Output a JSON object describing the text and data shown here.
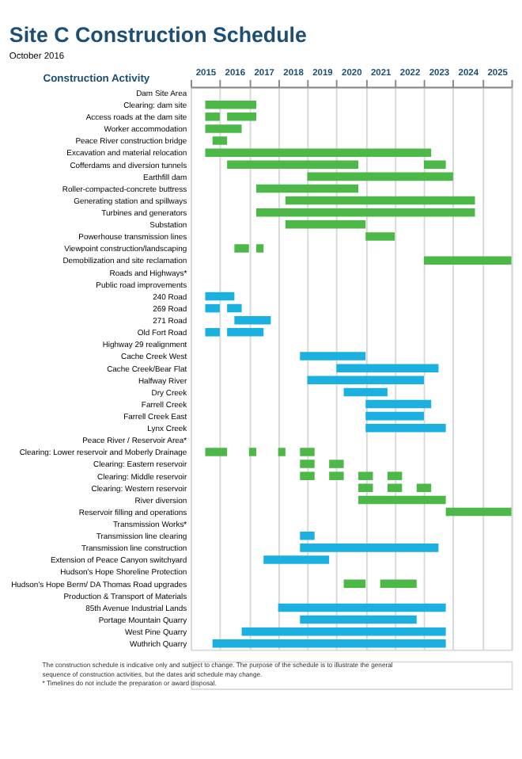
{
  "chart_data": {
    "type": "bar",
    "orientation": "horizontal",
    "title": "Site C Construction Schedule",
    "subtitle": "October 2016",
    "ylabel": "Construction Activity",
    "categories": [
      "Dam Site Area",
      "Clearing: dam site",
      "Access roads at the dam site",
      "Worker accommodation",
      "Peace River construction bridge",
      "Excavation and material relocation",
      "Cofferdams and diversion tunnels",
      "Earthfill dam",
      "Roller-compacted-concrete buttress",
      "Generating station and spillways",
      "Turbines and generators",
      "Substation",
      "Powerhouse transmission lines",
      "Viewpoint construction/landscaping",
      "Demobilization and site reclamation",
      "Roads and Highways*",
      "Public road improvements",
      "240 Road",
      "269 Road",
      "271 Road",
      "Old Fort Road",
      "Highway 29 realignment",
      "Cache Creek West",
      "Cache Creek/Bear Flat",
      "Halfway River",
      "Dry Creek",
      "Farrell Creek",
      "Farrell Creek East",
      "Lynx Creek",
      "Peace River / Reservoir Area*",
      "Clearing: Lower reservoir and Moberly Drainage",
      "Clearing: Eastern reservoir",
      "Clearing: Middle reservoir",
      "Clearing: Western reservoir",
      "River diversion",
      "Reservoir filling and operations",
      "Transmission Works*",
      "Transmission line clearing",
      "Transmission line construction",
      "Extension of Peace Canyon switchyard",
      "Hudson's Hope Shoreline Protection",
      "Hudson's Hope Berm/ DA Thomas Road upgrades",
      "Production & Transport of Materials",
      "85th Avenue Industrial Lands",
      "Portage Mountain Quarry",
      "West Pine Quarry",
      "Wuthrich Quarry"
    ],
    "series": [
      {
        "color": "#4cb848",
        "values": [
          null,
          1.75,
          0.5,
          1.25,
          0.5,
          7.75,
          4.5,
          5,
          3.5,
          6.5,
          7.5,
          2.75,
          1,
          0.5,
          3,
          null,
          null,
          null,
          null,
          null,
          null,
          null,
          null,
          null,
          null,
          null,
          null,
          null,
          null,
          null,
          0.75,
          0.5,
          0.5,
          0.5,
          3,
          2.25,
          null,
          null,
          null,
          null,
          null,
          0.75,
          null,
          null,
          null,
          null,
          null
        ],
        "base": [
          null,
          2015.5,
          2015.5,
          2015.5,
          2015.75,
          2015.5,
          2016.25,
          2019,
          2017.25,
          2018.25,
          2017.25,
          2018.25,
          2021,
          2016.5,
          2023,
          null,
          null,
          null,
          null,
          null,
          null,
          null,
          null,
          null,
          null,
          null,
          null,
          null,
          null,
          null,
          2015.5,
          2018.75,
          2018.75,
          2020.75,
          2020.75,
          2023.75,
          null,
          null,
          null,
          null,
          null,
          2020.25,
          null,
          null,
          null,
          null,
          null
        ]
      },
      {
        "color": "#4cb848",
        "values": [
          null,
          null,
          1,
          null,
          null,
          null,
          0.75,
          null,
          null,
          null,
          null,
          null,
          null,
          0.25,
          null,
          null,
          null,
          null,
          null,
          null,
          null,
          null,
          null,
          null,
          null,
          null,
          null,
          null,
          null,
          null,
          0.25,
          0.5,
          0.5,
          0.5,
          null,
          null,
          null,
          null,
          null,
          null,
          null,
          1.25,
          null,
          null,
          null,
          null,
          null
        ],
        "base": [
          null,
          null,
          2016.25,
          null,
          null,
          null,
          2023,
          null,
          null,
          null,
          null,
          null,
          null,
          2017.25,
          null,
          null,
          null,
          null,
          null,
          null,
          null,
          null,
          null,
          null,
          null,
          null,
          null,
          null,
          null,
          null,
          2017,
          2019.75,
          2019.75,
          2021.75,
          null,
          null,
          null,
          null,
          null,
          null,
          null,
          2021.5,
          null,
          null,
          null,
          null,
          null
        ]
      },
      {
        "color": "#4cb848",
        "values": [
          null,
          null,
          null,
          null,
          null,
          null,
          null,
          null,
          null,
          null,
          null,
          null,
          null,
          null,
          null,
          null,
          null,
          null,
          null,
          null,
          null,
          null,
          null,
          null,
          null,
          null,
          null,
          null,
          null,
          null,
          0.25,
          null,
          0.5,
          0.5,
          null,
          null,
          null,
          null,
          null,
          null,
          null,
          null,
          null,
          null,
          null,
          null,
          null
        ],
        "base": [
          null,
          null,
          null,
          null,
          null,
          null,
          null,
          null,
          null,
          null,
          null,
          null,
          null,
          null,
          null,
          null,
          null,
          null,
          null,
          null,
          null,
          null,
          null,
          null,
          null,
          null,
          null,
          null,
          null,
          null,
          2018,
          null,
          2020.75,
          2022.75,
          null,
          null,
          null,
          null,
          null,
          null,
          null,
          null,
          null,
          null,
          null,
          null,
          null
        ]
      },
      {
        "color": "#4cb848",
        "values": [
          null,
          null,
          null,
          null,
          null,
          null,
          null,
          null,
          null,
          null,
          null,
          null,
          null,
          null,
          null,
          null,
          null,
          null,
          null,
          null,
          null,
          null,
          null,
          null,
          null,
          null,
          null,
          null,
          null,
          null,
          0.5,
          null,
          0.5,
          null,
          null,
          null,
          null,
          null,
          null,
          null,
          null,
          null,
          null,
          null,
          null,
          null,
          null
        ],
        "base": [
          null,
          null,
          null,
          null,
          null,
          null,
          null,
          null,
          null,
          null,
          null,
          null,
          null,
          null,
          null,
          null,
          null,
          null,
          null,
          null,
          null,
          null,
          null,
          null,
          null,
          null,
          null,
          null,
          null,
          null,
          2018.75,
          null,
          2021.75,
          null,
          null,
          null,
          null,
          null,
          null,
          null,
          null,
          null,
          null,
          null,
          null,
          null,
          null
        ]
      },
      {
        "color": "#1ab0e0",
        "values": [
          null,
          null,
          null,
          null,
          null,
          null,
          null,
          null,
          null,
          null,
          null,
          null,
          null,
          null,
          null,
          null,
          null,
          1,
          0.5,
          1.25,
          0.5,
          null,
          2.25,
          3.5,
          4,
          1.5,
          2.25,
          2,
          2.75,
          null,
          null,
          null,
          null,
          null,
          null,
          null,
          null,
          0.5,
          4.75,
          2.25,
          null,
          null,
          null,
          5.75,
          4,
          7,
          8
        ],
        "base": [
          null,
          null,
          null,
          null,
          null,
          null,
          null,
          null,
          null,
          null,
          null,
          null,
          null,
          null,
          null,
          null,
          null,
          2015.5,
          2015.5,
          2016.5,
          2015.5,
          null,
          2018.75,
          2020,
          2019,
          2020.25,
          2021,
          2021,
          2021,
          null,
          null,
          null,
          null,
          null,
          null,
          null,
          null,
          2018.75,
          2018.75,
          2017.5,
          null,
          null,
          null,
          2018,
          2018.75,
          2016.75,
          2015.75
        ]
      },
      {
        "color": "#1ab0e0",
        "values": [
          null,
          null,
          null,
          null,
          null,
          null,
          null,
          null,
          null,
          null,
          null,
          null,
          null,
          null,
          null,
          null,
          null,
          null,
          0.5,
          null,
          1.25,
          null,
          null,
          null,
          null,
          null,
          null,
          null,
          null,
          null,
          null,
          null,
          null,
          null,
          null,
          null,
          null,
          null,
          null,
          null,
          null,
          null,
          null,
          null,
          null,
          null,
          null
        ],
        "base": [
          null,
          null,
          null,
          null,
          null,
          null,
          null,
          null,
          null,
          null,
          null,
          null,
          null,
          null,
          null,
          null,
          null,
          null,
          2016.25,
          null,
          2016.25,
          null,
          null,
          null,
          null,
          null,
          null,
          null,
          null,
          null,
          null,
          null,
          null,
          null,
          null,
          null,
          null,
          null,
          null,
          null,
          null,
          null,
          null,
          null,
          null,
          null,
          null
        ]
      }
    ],
    "xlim": [
      2015,
      2026
    ],
    "xticks": [
      {
        "value": 2015,
        "label": null
      },
      {
        "value": 2015.5,
        "label": "2015"
      },
      {
        "value": 2016,
        "label": null
      },
      {
        "value": 2016.5,
        "label": "2016"
      },
      {
        "value": 2017,
        "label": null
      },
      {
        "value": 2017.5,
        "label": "2017"
      },
      {
        "value": 2018,
        "label": null
      },
      {
        "value": 2018.5,
        "label": "2018"
      },
      {
        "value": 2019,
        "label": null
      },
      {
        "value": 2019.5,
        "label": "2019"
      },
      {
        "value": 2020,
        "label": null
      },
      {
        "value": 2020.5,
        "label": "2020"
      },
      {
        "value": 2021,
        "label": null
      },
      {
        "value": 2021.5,
        "label": "2021"
      },
      {
        "value": 2022,
        "label": null
      },
      {
        "value": 2022.5,
        "label": "2022"
      },
      {
        "value": 2023,
        "label": null
      },
      {
        "value": 2023.5,
        "label": "2023"
      },
      {
        "value": 2024,
        "label": null
      },
      {
        "value": 2024.5,
        "label": "2024"
      },
      {
        "value": 2025,
        "label": null
      },
      {
        "value": 2025.5,
        "label": "2025"
      },
      {
        "value": 2026,
        "label": null
      }
    ],
    "grid": "x",
    "annotations": [
      "The construction schedule is indicative only and subject to change. The purpose of the schedule is to illustrate the general sequence of construction activities, but the dates and schedule may change.",
      "* Timelines do not include the preparation or award disposal."
    ]
  }
}
